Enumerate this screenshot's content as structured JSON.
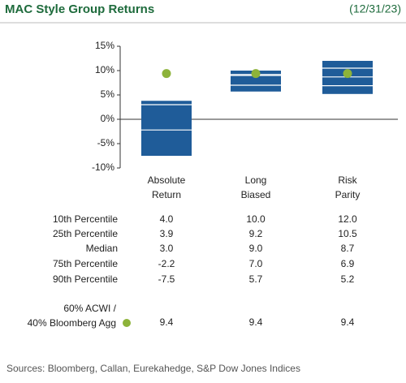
{
  "header": {
    "title": "MAC Style Group Returns",
    "date": "(12/31/23)"
  },
  "chart_data": {
    "type": "floating-box",
    "categories": [
      "Absolute\nReturn",
      "Long\nBiased",
      "Risk\nParity"
    ],
    "ylim": [
      -10,
      15
    ],
    "yticks": [
      {
        "value": -10,
        "label": "-10%"
      },
      {
        "value": -5,
        "label": "-5%"
      },
      {
        "value": 0,
        "label": "0%"
      },
      {
        "value": 5,
        "label": "5%"
      },
      {
        "value": 10,
        "label": "10%"
      },
      {
        "value": 15,
        "label": "15%"
      }
    ],
    "box_color": "#1f5c99",
    "series": [
      {
        "name": "10th Percentile",
        "values": [
          4.0,
          10.0,
          12.0
        ],
        "value_labels": [
          "4.0",
          "10.0",
          "12.0"
        ]
      },
      {
        "name": "25th Percentile",
        "values": [
          3.9,
          9.2,
          10.5
        ],
        "value_labels": [
          "3.9",
          "9.2",
          "10.5"
        ]
      },
      {
        "name": "Median",
        "values": [
          3.0,
          9.0,
          8.7
        ],
        "value_labels": [
          "3.0",
          "9.0",
          "8.7"
        ]
      },
      {
        "name": "75th Percentile",
        "values": [
          -2.2,
          7.0,
          6.9
        ],
        "value_labels": [
          "-2.2",
          "7.0",
          "6.9"
        ]
      },
      {
        "name": "90th Percentile",
        "values": [
          -7.5,
          5.7,
          5.2
        ],
        "value_labels": [
          "-7.5",
          "5.7",
          "5.2"
        ]
      }
    ],
    "benchmark": {
      "name": "60% ACWI /\n40% Bloomberg Agg",
      "color": "#8db33a",
      "values": [
        9.4,
        9.4,
        9.4
      ]
    }
  },
  "source": "Sources: Bloomberg, Callan, Eurekahedge, S&P Dow Jones Indices"
}
